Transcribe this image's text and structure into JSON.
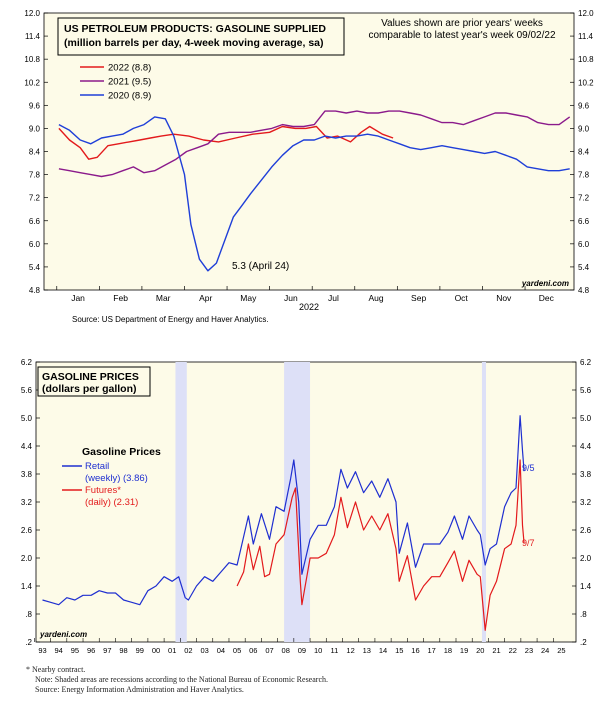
{
  "chart_data": [
    {
      "type": "line",
      "title": "US PETROLEUM PRODUCTS: GASOLINE SUPPLIED",
      "subtitle": "(million barrels per day, 4-week moving average, sa)",
      "note": "Values shown are prior years' weeks comparable to latest year's week 09/02/22",
      "xlabel": "2022",
      "ylim": [
        4.8,
        12.0
      ],
      "yticks": [
        "4.8",
        "5.4",
        "6.0",
        "6.6",
        "7.2",
        "7.8",
        "8.4",
        "9.0",
        "9.6",
        "10.2",
        "10.8",
        "11.4",
        "12.0"
      ],
      "months": [
        "Jan",
        "Feb",
        "Mar",
        "Apr",
        "May",
        "Jun",
        "Jul",
        "Aug",
        "Sep",
        "Oct",
        "Nov",
        "Dec"
      ],
      "annotation": "5.3 (April 24)",
      "watermark": "yardeni.com",
      "source": "Source: US Department of Energy and Haver Analytics.",
      "series": [
        {
          "name": "2022 (8.8)",
          "color": "#e31a1c",
          "x": [
            0.05,
            0.3,
            0.55,
            0.75,
            0.95,
            1.2,
            1.45,
            1.7,
            1.95,
            2.2,
            2.45,
            2.75,
            3.1,
            3.45,
            3.8,
            4.2,
            4.6,
            5.0,
            5.3,
            5.6,
            5.85,
            6.1,
            6.35,
            6.6,
            6.9,
            7.15,
            7.35,
            7.65,
            7.9
          ],
          "values": [
            9.0,
            8.7,
            8.5,
            8.2,
            8.25,
            8.55,
            8.6,
            8.65,
            8.7,
            8.75,
            8.8,
            8.85,
            8.8,
            8.7,
            8.65,
            8.75,
            8.85,
            8.9,
            9.05,
            9.0,
            9.0,
            9.05,
            8.75,
            8.8,
            8.65,
            8.9,
            9.05,
            8.85,
            8.75
          ]
        },
        {
          "name": "2021 (9.5)",
          "color": "#8b1a8b",
          "x": [
            0.05,
            0.3,
            0.55,
            0.8,
            1.05,
            1.3,
            1.55,
            1.8,
            2.05,
            2.3,
            2.55,
            2.8,
            3.05,
            3.3,
            3.55,
            3.8,
            4.05,
            4.3,
            4.55,
            4.8,
            5.05,
            5.3,
            5.55,
            5.8,
            6.05,
            6.3,
            6.55,
            6.8,
            7.05,
            7.3,
            7.55,
            7.8,
            8.05,
            8.3,
            8.55,
            8.8,
            9.05,
            9.3,
            9.55,
            9.8,
            10.05,
            10.3,
            10.55,
            10.8,
            11.05,
            11.3,
            11.55,
            11.8,
            12.05
          ],
          "values": [
            7.95,
            7.9,
            7.85,
            7.8,
            7.75,
            7.8,
            7.9,
            8.0,
            7.85,
            7.9,
            8.05,
            8.2,
            8.4,
            8.5,
            8.6,
            8.85,
            8.9,
            8.9,
            8.9,
            8.95,
            9.0,
            9.1,
            9.05,
            9.05,
            9.1,
            9.45,
            9.45,
            9.4,
            9.45,
            9.4,
            9.4,
            9.45,
            9.45,
            9.4,
            9.35,
            9.25,
            9.15,
            9.15,
            9.1,
            9.2,
            9.3,
            9.4,
            9.4,
            9.35,
            9.3,
            9.15,
            9.1,
            9.1,
            9.3
          ]
        },
        {
          "name": "2020 (8.9)",
          "color": "#1f3fd8",
          "x": [
            0.05,
            0.3,
            0.55,
            0.8,
            1.05,
            1.3,
            1.55,
            1.8,
            2.05,
            2.3,
            2.55,
            2.75,
            3.0,
            3.15,
            3.35,
            3.55,
            3.75,
            3.95,
            4.15,
            4.35,
            4.55,
            4.8,
            5.05,
            5.3,
            5.55,
            5.8,
            6.05,
            6.3,
            6.55,
            6.8,
            7.05,
            7.3,
            7.55,
            7.8,
            8.05,
            8.3,
            8.55,
            8.8,
            9.05,
            9.3,
            9.55,
            9.8,
            10.05,
            10.3,
            10.55,
            10.8,
            11.05,
            11.3,
            11.55,
            11.8,
            12.05
          ],
          "values": [
            9.1,
            8.95,
            8.7,
            8.6,
            8.75,
            8.8,
            8.85,
            9.0,
            9.1,
            9.3,
            9.25,
            8.8,
            7.8,
            6.5,
            5.6,
            5.3,
            5.5,
            6.1,
            6.7,
            7.0,
            7.3,
            7.65,
            8.0,
            8.3,
            8.55,
            8.7,
            8.7,
            8.8,
            8.75,
            8.8,
            8.8,
            8.85,
            8.8,
            8.7,
            8.6,
            8.5,
            8.45,
            8.5,
            8.55,
            8.5,
            8.45,
            8.4,
            8.35,
            8.4,
            8.3,
            8.2,
            8.0,
            7.95,
            7.9,
            7.9,
            7.95
          ]
        }
      ]
    },
    {
      "type": "line",
      "title": "GASOLINE PRICES",
      "subtitle": "(dollars per gallon)",
      "legend_title": "Gasoline Prices",
      "ylim": [
        0.2,
        6.2
      ],
      "yticks": [
        ".2",
        ".8",
        "1.4",
        "2.0",
        "2.6",
        "3.2",
        "3.8",
        "4.4",
        "5.0",
        "5.6",
        "6.2"
      ],
      "xlim": [
        1993,
        2026
      ],
      "xticks": [
        "93",
        "94",
        "95",
        "96",
        "97",
        "98",
        "99",
        "00",
        "01",
        "02",
        "03",
        "04",
        "05",
        "06",
        "07",
        "08",
        "09",
        "10",
        "11",
        "12",
        "13",
        "14",
        "15",
        "16",
        "17",
        "18",
        "19",
        "20",
        "21",
        "22",
        "23",
        "24",
        "25"
      ],
      "recessions": [
        [
          2001.2,
          2001.9
        ],
        [
          2007.9,
          2009.5
        ],
        [
          2020.1,
          2020.35
        ]
      ],
      "annotations": [
        "9/5",
        "9/7"
      ],
      "watermark": "yardeni.com",
      "series": [
        {
          "name": "Retail",
          "label2": "(weekly) (3.86)",
          "color": "#1f2fd0",
          "x": [
            1993.0,
            1993.5,
            1994.0,
            1994.5,
            1995.0,
            1995.5,
            1996.0,
            1996.5,
            1997.0,
            1997.5,
            1998.0,
            1998.5,
            1999.0,
            1999.5,
            2000.0,
            2000.5,
            2001.0,
            2001.4,
            2001.8,
            2002.0,
            2002.5,
            2003.0,
            2003.5,
            2004.0,
            2004.5,
            2005.0,
            2005.7,
            2006.0,
            2006.5,
            2007.0,
            2007.4,
            2007.9,
            2008.3,
            2008.5,
            2008.8,
            2009.0,
            2009.5,
            2010.0,
            2010.5,
            2011.0,
            2011.4,
            2011.8,
            2012.3,
            2012.8,
            2013.3,
            2013.8,
            2014.3,
            2014.8,
            2015.0,
            2015.5,
            2016.0,
            2016.5,
            2017.0,
            2017.5,
            2018.0,
            2018.4,
            2018.9,
            2019.3,
            2019.8,
            2020.0,
            2020.3,
            2020.6,
            2021.0,
            2021.5,
            2021.9,
            2022.2,
            2022.45,
            2022.6,
            2022.7
          ],
          "values": [
            1.1,
            1.05,
            1.0,
            1.15,
            1.1,
            1.2,
            1.2,
            1.3,
            1.25,
            1.25,
            1.1,
            1.05,
            1.0,
            1.3,
            1.4,
            1.6,
            1.5,
            1.6,
            1.15,
            1.1,
            1.4,
            1.6,
            1.5,
            1.7,
            1.9,
            1.85,
            2.9,
            2.3,
            2.95,
            2.4,
            3.1,
            3.0,
            3.7,
            4.1,
            3.2,
            1.65,
            2.4,
            2.7,
            2.7,
            3.1,
            3.9,
            3.5,
            3.85,
            3.4,
            3.65,
            3.3,
            3.7,
            3.2,
            2.1,
            2.75,
            1.8,
            2.3,
            2.3,
            2.3,
            2.55,
            2.9,
            2.4,
            2.9,
            2.6,
            2.5,
            1.85,
            2.2,
            2.3,
            3.1,
            3.4,
            3.5,
            5.05,
            4.3,
            3.86
          ]
        },
        {
          "name": "Futures*",
          "label2": "(daily) (2.31)",
          "color": "#e31a1c",
          "x": [
            2005.0,
            2005.4,
            2005.7,
            2006.0,
            2006.4,
            2006.7,
            2007.0,
            2007.4,
            2007.9,
            2008.4,
            2008.6,
            2008.9,
            2009.0,
            2009.5,
            2010.0,
            2010.5,
            2011.0,
            2011.4,
            2011.8,
            2012.3,
            2012.8,
            2013.3,
            2013.8,
            2014.3,
            2014.8,
            2015.0,
            2015.5,
            2016.0,
            2016.5,
            2017.0,
            2017.5,
            2018.0,
            2018.4,
            2018.9,
            2019.3,
            2019.8,
            2020.0,
            2020.3,
            2020.6,
            2021.0,
            2021.5,
            2021.9,
            2022.2,
            2022.45,
            2022.6,
            2022.7
          ],
          "values": [
            1.4,
            1.7,
            2.3,
            1.75,
            2.25,
            1.6,
            1.65,
            2.3,
            2.5,
            3.3,
            3.5,
            1.5,
            1.0,
            2.0,
            2.0,
            2.1,
            2.5,
            3.3,
            2.65,
            3.2,
            2.6,
            2.9,
            2.6,
            2.95,
            2.2,
            1.5,
            2.05,
            1.1,
            1.4,
            1.6,
            1.6,
            1.9,
            2.15,
            1.5,
            1.95,
            1.65,
            1.6,
            0.45,
            1.2,
            1.5,
            2.2,
            2.3,
            2.7,
            4.1,
            2.7,
            2.31
          ]
        }
      ]
    }
  ],
  "footnotes": [
    "*  Nearby contract.",
    "Note: Shaded areas are recessions according to the National Bureau of Economic Research.",
    "Source: Energy Information Administration and Haver Analytics."
  ]
}
